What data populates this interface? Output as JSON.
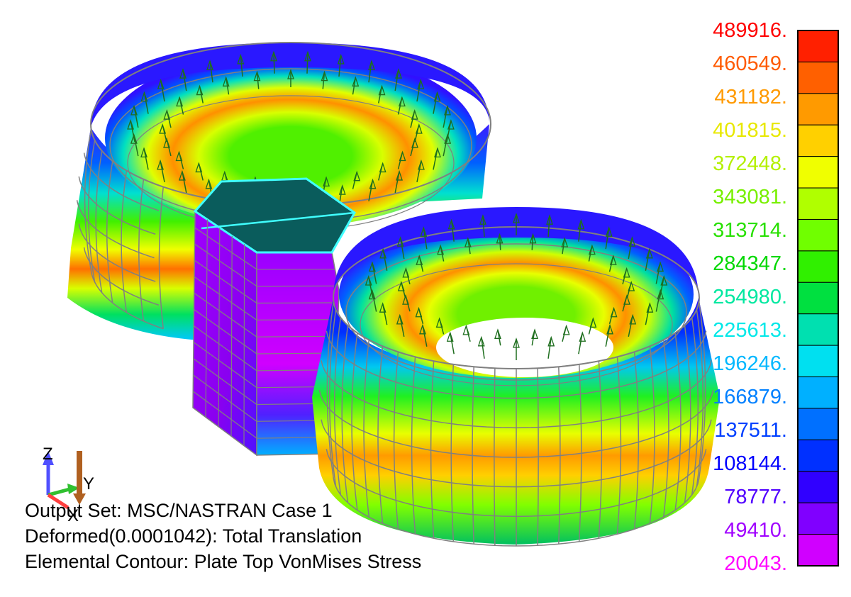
{
  "legend": {
    "labels": [
      "489916.",
      "460549.",
      "431182.",
      "401815.",
      "372448.",
      "343081.",
      "313714.",
      "284347.",
      "254980.",
      "225613.",
      "196246.",
      "166879.",
      "137511.",
      "108144.",
      "78777.",
      "49410.",
      "20043."
    ],
    "label_colors": [
      "#ff0000",
      "#ff5a00",
      "#ff9a00",
      "#e8e800",
      "#b4f000",
      "#78f000",
      "#28e000",
      "#00d800",
      "#00e8a0",
      "#00e8e8",
      "#00b8ff",
      "#0080ff",
      "#0040ff",
      "#0000ff",
      "#5000ff",
      "#a000ff",
      "#ff00ff"
    ],
    "band_colors": [
      "#ff2000",
      "#ff6000",
      "#ff9a00",
      "#ffd000",
      "#f0ff00",
      "#b0ff00",
      "#70ff00",
      "#30f000",
      "#00e040",
      "#00e0b0",
      "#00e0f0",
      "#00b0ff",
      "#0070ff",
      "#0030ff",
      "#3000ff",
      "#8000ff",
      "#d000ff"
    ]
  },
  "triad": {
    "z": "Z",
    "y": "Y",
    "x": "X"
  },
  "captions": {
    "output_set": "Output Set: MSC/NASTRAN Case 1",
    "deformed": "Deformed(0.0001042): Total Translation",
    "contour": "Elemental Contour: Plate Top VonMises Stress"
  },
  "colors": {
    "mesh": "#808080",
    "arrow": "#1e6e1e",
    "plate": "#0a5c5c",
    "plate_edge": "#40ffff"
  }
}
